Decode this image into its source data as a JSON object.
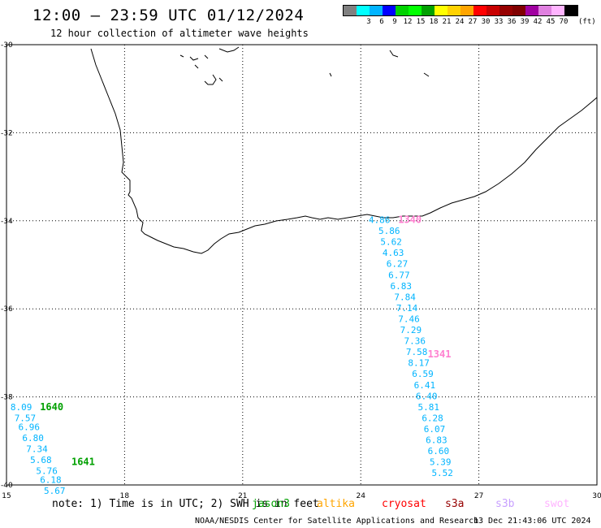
{
  "header": {
    "title": "12:00 – 23:59 UTC 01/12/2024",
    "subtitle": "12 hour collection of altimeter wave heights"
  },
  "legend": {
    "items": [
      {
        "label": "",
        "color": "#808080"
      },
      {
        "label": "3",
        "color": "#00ffff"
      },
      {
        "label": "6",
        "color": "#00b4ff"
      },
      {
        "label": "9",
        "color": "#0000ff"
      },
      {
        "label": "12",
        "color": "#00d200"
      },
      {
        "label": "15",
        "color": "#00ff00"
      },
      {
        "label": "18",
        "color": "#00a000"
      },
      {
        "label": "21",
        "color": "#ffff00"
      },
      {
        "label": "24",
        "color": "#ffd200"
      },
      {
        "label": "27",
        "color": "#ffa500"
      },
      {
        "label": "30",
        "color": "#ff0000"
      },
      {
        "label": "33",
        "color": "#c80000"
      },
      {
        "label": "36",
        "color": "#960000"
      },
      {
        "label": "39",
        "color": "#800000"
      },
      {
        "label": "42",
        "color": "#a000a0"
      },
      {
        "label": "45",
        "color": "#e080e0"
      },
      {
        "label": "70",
        "color": "#ffb4ff"
      },
      {
        "label": "",
        "color": "#000000"
      }
    ],
    "unit": "(ft)"
  },
  "chart_data": {
    "type": "scatter",
    "xlim": [
      15,
      30
    ],
    "ylim": [
      -40,
      -30
    ],
    "x_ticks": [
      "15",
      "18",
      "21",
      "24",
      "27",
      "30"
    ],
    "y_ticks": [
      "-30",
      "-32",
      "-34",
      "-36",
      "-38",
      "-40"
    ],
    "grid": true,
    "tracks": [
      {
        "satellite": "jason3",
        "color": "#00b4ff",
        "points": [
          {
            "lon": 24.2,
            "lat": -34.05,
            "v": "4.86"
          },
          {
            "lon": 24.45,
            "lat": -34.3,
            "v": "5.86"
          },
          {
            "lon": 24.5,
            "lat": -34.55,
            "v": "5.62"
          },
          {
            "lon": 24.55,
            "lat": -34.8,
            "v": "4.63"
          },
          {
            "lon": 24.65,
            "lat": -35.05,
            "v": "6.27"
          },
          {
            "lon": 24.7,
            "lat": -35.3,
            "v": "6.77"
          },
          {
            "lon": 24.75,
            "lat": -35.55,
            "v": "6.83"
          },
          {
            "lon": 24.85,
            "lat": -35.8,
            "v": "7.84"
          },
          {
            "lon": 24.9,
            "lat": -36.05,
            "v": "7.14"
          },
          {
            "lon": 24.95,
            "lat": -36.3,
            "v": "7.46"
          },
          {
            "lon": 25.0,
            "lat": -36.55,
            "v": "7.29"
          },
          {
            "lon": 25.1,
            "lat": -36.8,
            "v": "7.36"
          },
          {
            "lon": 25.15,
            "lat": -37.05,
            "v": "7.58"
          },
          {
            "lon": 25.2,
            "lat": -37.3,
            "v": "8.17"
          },
          {
            "lon": 25.3,
            "lat": -37.55,
            "v": "6.59"
          },
          {
            "lon": 25.35,
            "lat": -37.8,
            "v": "6.41"
          },
          {
            "lon": 25.4,
            "lat": -38.05,
            "v": "6.40"
          },
          {
            "lon": 25.45,
            "lat": -38.3,
            "v": "5.81"
          },
          {
            "lon": 25.55,
            "lat": -38.55,
            "v": "6.28"
          },
          {
            "lon": 25.6,
            "lat": -38.8,
            "v": "6.07"
          },
          {
            "lon": 25.65,
            "lat": -39.05,
            "v": "6.83"
          },
          {
            "lon": 25.7,
            "lat": -39.3,
            "v": "6.60"
          },
          {
            "lon": 25.75,
            "lat": -39.55,
            "v": "5.39"
          },
          {
            "lon": 25.8,
            "lat": -39.8,
            "v": "5.52"
          }
        ]
      },
      {
        "satellite": "jason3",
        "color": "#00b4ff",
        "points": [
          {
            "lon": 15.1,
            "lat": -38.3,
            "v": "8.09"
          },
          {
            "lon": 15.2,
            "lat": -38.55,
            "v": "7.57"
          },
          {
            "lon": 15.3,
            "lat": -38.75,
            "v": "6.96"
          },
          {
            "lon": 15.4,
            "lat": -39.0,
            "v": "6.80"
          },
          {
            "lon": 15.5,
            "lat": -39.25,
            "v": "7.34"
          },
          {
            "lon": 15.6,
            "lat": -39.5,
            "v": "5.68"
          },
          {
            "lon": 15.75,
            "lat": -39.75,
            "v": "5.76"
          },
          {
            "lon": 15.85,
            "lat": -39.95,
            "v": "6.18"
          },
          {
            "lon": 15.95,
            "lat": -40.2,
            "v": "5.67"
          }
        ]
      }
    ],
    "time_labels": [
      {
        "lon": 25.7,
        "lat": -37.1,
        "text": "1341",
        "color": "#ff80d0"
      },
      {
        "lon": 24.95,
        "lat": -34.05,
        "text": "1340",
        "color": "#ff80d0"
      },
      {
        "lon": 15.85,
        "lat": -38.3,
        "text": "1640",
        "color": "#00a000"
      },
      {
        "lon": 16.65,
        "lat": -39.55,
        "text": "1641",
        "color": "#00a000"
      }
    ]
  },
  "footer": {
    "note": "note:  1) Time is in UTC;  2) SWH is in feet",
    "satellites": [
      {
        "name": "jason3",
        "color": "#00a000"
      },
      {
        "name": "altika",
        "color": "#ffa500"
      },
      {
        "name": "cryosat",
        "color": "#ff0000"
      },
      {
        "name": "s3a",
        "color": "#960000"
      },
      {
        "name": "s3b",
        "color": "#c8a0ff"
      },
      {
        "name": "swot",
        "color": "#ffb4ff"
      }
    ],
    "credit": "NOAA/NESDIS Center for Satellite Applications and Research",
    "timestamp": "13 Dec 21:43:06 UTC 2024"
  }
}
